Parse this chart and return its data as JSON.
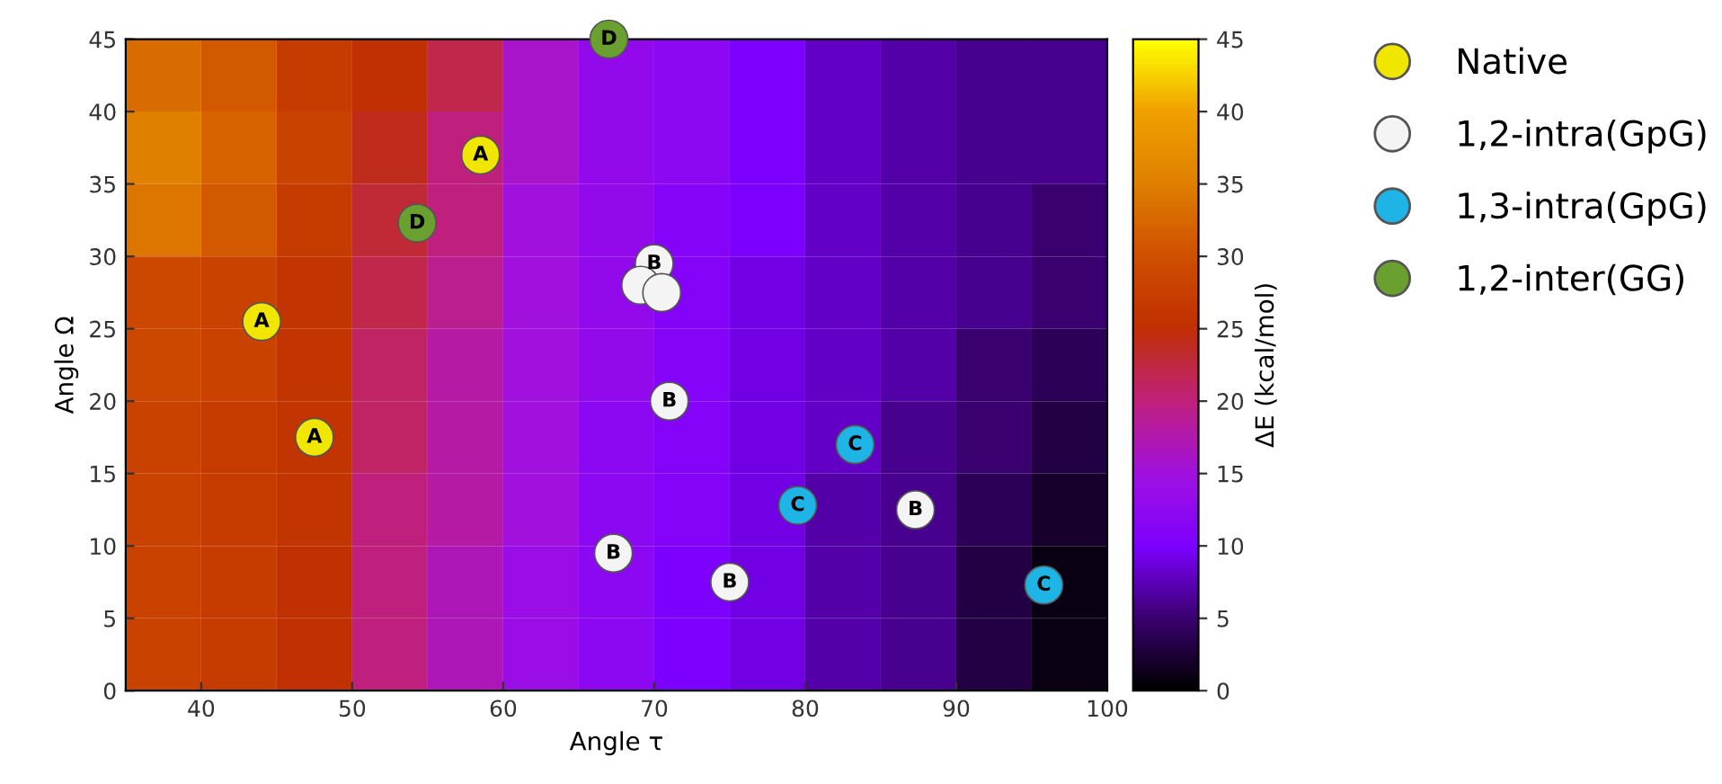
{
  "chart_data": {
    "type": "heatmap",
    "xlabel": "Angle τ",
    "ylabel": "Angle Ω",
    "clabel": "ΔE (kcal/mol)",
    "cells": [
      [
        33,
        31,
        27,
        25,
        22,
        16,
        13,
        12,
        10,
        8,
        7,
        6,
        6
      ],
      [
        35,
        32,
        28,
        24,
        20,
        16,
        13,
        12,
        10,
        8,
        7,
        6,
        6
      ],
      [
        34,
        31,
        27,
        23,
        20,
        15,
        13,
        11,
        10,
        8,
        7,
        6,
        5
      ],
      [
        29,
        28,
        26,
        22,
        19,
        15,
        13,
        11,
        9,
        8,
        7,
        6,
        5
      ],
      [
        29,
        28,
        26,
        21,
        18,
        15,
        13,
        11,
        9,
        8,
        7,
        5,
        4
      ],
      [
        28,
        27,
        26,
        21,
        18,
        15,
        12,
        11,
        9,
        8,
        6,
        5,
        3
      ],
      [
        28,
        27,
        26,
        20,
        18,
        15,
        12,
        11,
        9,
        7,
        6,
        4,
        2
      ],
      [
        28,
        27,
        25,
        20,
        17,
        14,
        12,
        10,
        9,
        7,
        6,
        3,
        1
      ],
      [
        28,
        27,
        25,
        20,
        17,
        14,
        12,
        10,
        9,
        7,
        6,
        3,
        1
      ]
    ],
    "clim": [
      0,
      45
    ],
    "cticks": [
      0,
      5,
      10,
      15,
      20,
      25,
      30,
      35,
      40,
      45
    ],
    "xlim": [
      35,
      100
    ],
    "xticks": [
      40,
      50,
      60,
      70,
      80,
      90,
      100
    ],
    "ylim": [
      0,
      45
    ],
    "yticks": [
      0,
      5,
      10,
      15,
      20,
      25,
      30,
      35,
      40,
      45
    ],
    "legend": "right",
    "marker": "circle",
    "series": [
      {
        "type": "scatter",
        "name": "Native",
        "color": "#f0e600",
        "x": [
          44,
          47.5,
          58.5
        ],
        "values": [
          25.5,
          17.5,
          37
        ]
      },
      {
        "type": "scatter",
        "name": "1,2-intra(GpG)",
        "color": "#f4f4f4",
        "x": [
          67.3,
          70,
          69.1,
          70.5,
          71,
          75,
          87.3
        ],
        "values": [
          9.5,
          29.5,
          28,
          27.5,
          20,
          7.5,
          12.5
        ]
      },
      {
        "type": "scatter",
        "name": "1,3-intra(GpG)",
        "color": "#1eb4e6",
        "x": [
          79.5,
          83.3,
          95.8
        ],
        "values": [
          12.8,
          17,
          7.3
        ]
      },
      {
        "type": "scatter",
        "name": "1,2-inter(GG)",
        "color": "#6aa030",
        "x": [
          67,
          54.3
        ],
        "values": [
          45,
          32.3
        ]
      }
    ],
    "annotations": [
      {
        "text": "A",
        "x": 44,
        "y": 25.5
      },
      {
        "text": "A",
        "x": 47.5,
        "y": 17.5
      },
      {
        "text": "A",
        "x": 58.5,
        "y": 37
      },
      {
        "text": "B",
        "x": 67.3,
        "y": 9.5
      },
      {
        "text": "B",
        "x": 70,
        "y": 29.5
      },
      {
        "text": "B",
        "x": 71,
        "y": 20
      },
      {
        "text": "B",
        "x": 75,
        "y": 7.5
      },
      {
        "text": "B",
        "x": 87.3,
        "y": 12.5
      },
      {
        "text": "C",
        "x": 79.5,
        "y": 12.8
      },
      {
        "text": "C",
        "x": 83.3,
        "y": 17
      },
      {
        "text": "C",
        "x": 95.8,
        "y": 7.3
      },
      {
        "text": "D",
        "x": 67,
        "y": 45
      },
      {
        "text": "D",
        "x": 54.3,
        "y": 32.3
      }
    ]
  }
}
